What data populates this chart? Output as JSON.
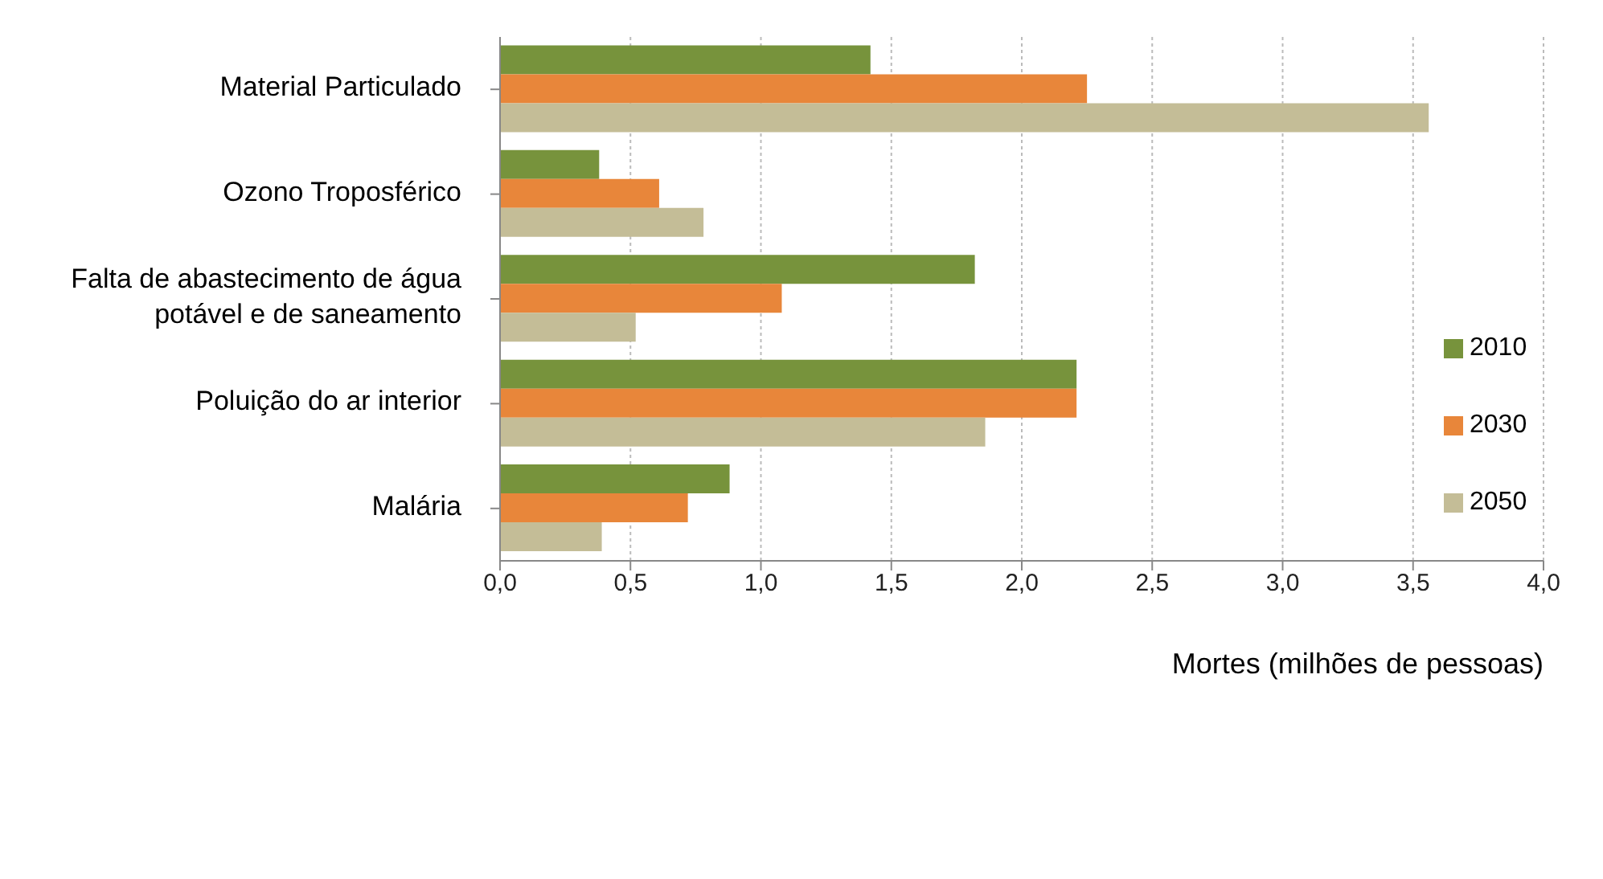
{
  "chart_data": {
    "type": "bar",
    "orientation": "horizontal",
    "xlabel": "Mortes (milhões de pessoas)",
    "categories": [
      "Material Particulado",
      "Ozono Troposférico",
      "Falta de abastecimento de água potável e de saneamento",
      "Poluição do ar interior",
      "Malária"
    ],
    "series": [
      {
        "name": "2010",
        "color": "#77933c",
        "values": [
          1.42,
          0.38,
          1.82,
          2.21,
          0.88
        ]
      },
      {
        "name": "2030",
        "color": "#e8863a",
        "values": [
          2.25,
          0.61,
          1.08,
          2.21,
          0.72
        ]
      },
      {
        "name": "2050",
        "color": "#c4bd97",
        "values": [
          3.56,
          0.78,
          0.52,
          1.86,
          0.39
        ]
      }
    ],
    "xlim": [
      0,
      4
    ],
    "xticks": [
      {
        "value": 0,
        "label": "0,0"
      },
      {
        "value": 0.5,
        "label": "0,5"
      },
      {
        "value": 1,
        "label": "1,0"
      },
      {
        "value": 1.5,
        "label": "1,5"
      },
      {
        "value": 2,
        "label": "2,0"
      },
      {
        "value": 2.5,
        "label": "2,5"
      },
      {
        "value": 3,
        "label": "3,0"
      },
      {
        "value": 3.5,
        "label": "3,5"
      },
      {
        "value": 4,
        "label": "4,0"
      }
    ],
    "grid": "x",
    "legend": "right"
  }
}
